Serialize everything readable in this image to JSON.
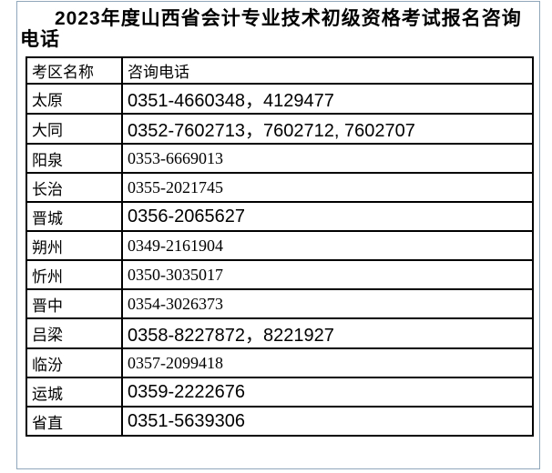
{
  "title": "2023年度山西省会计专业技术初级资格考试报名咨询电话",
  "frame_color": "#8fa7ba",
  "border_color": "#000000",
  "table": {
    "headers": [
      "考区名称",
      "咨询电话"
    ],
    "rows": [
      {
        "district": "太原",
        "phone": "0351-4660348，4129477",
        "emphasis": true
      },
      {
        "district": "大同",
        "phone": "0352-7602713，7602712, 7602707",
        "emphasis": true
      },
      {
        "district": "阳泉",
        "phone": "0353-6669013",
        "emphasis": false
      },
      {
        "district": "长治",
        "phone": "0355-2021745",
        "emphasis": false
      },
      {
        "district": "晋城",
        "phone": "0356-2065627",
        "emphasis": true
      },
      {
        "district": "朔州",
        "phone": "0349-2161904",
        "emphasis": false
      },
      {
        "district": "忻州",
        "phone": "0350-3035017",
        "emphasis": false
      },
      {
        "district": "晋中",
        "phone": "0354-3026373",
        "emphasis": false
      },
      {
        "district": "吕梁",
        "phone": "0358-8227872，8221927",
        "emphasis": true
      },
      {
        "district": "临汾",
        "phone": "0357-2099418",
        "emphasis": false
      },
      {
        "district": "运城",
        "phone": "0359-2222676",
        "emphasis": true
      },
      {
        "district": "省直",
        "phone": "0351-5639306",
        "emphasis": true
      }
    ]
  }
}
